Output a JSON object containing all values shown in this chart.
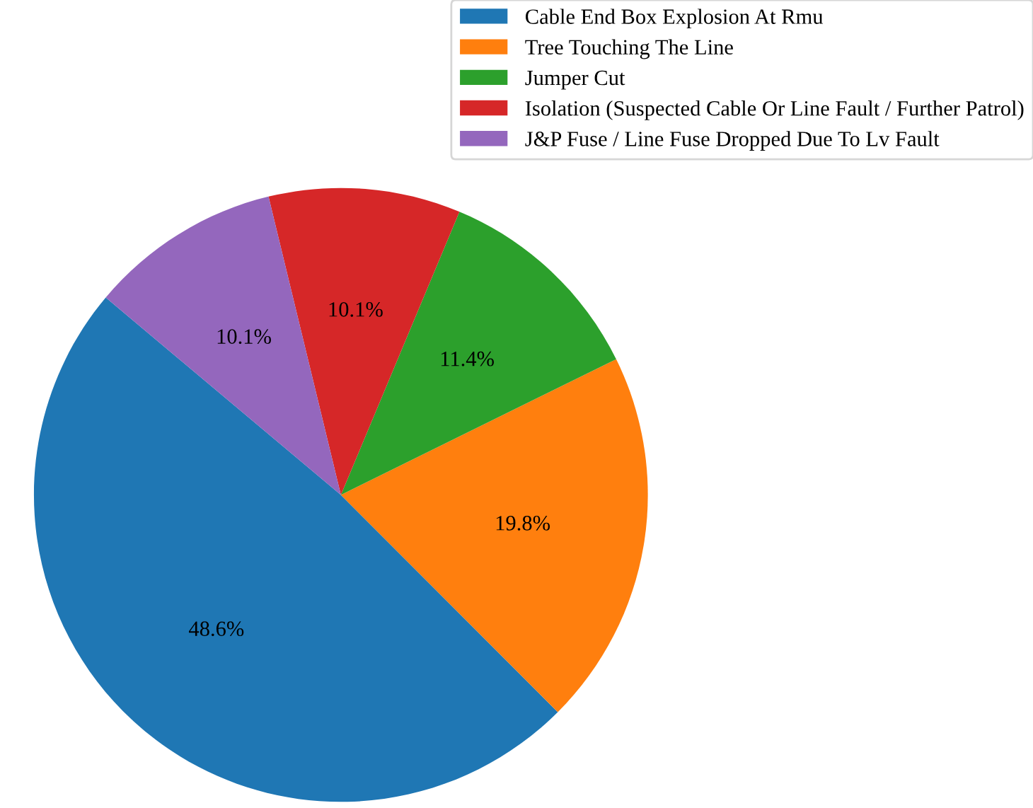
{
  "chart_data": {
    "type": "pie",
    "categories": [
      "Cable End Box Explosion At Rmu",
      "Tree Touching The Line",
      "Jumper Cut",
      "Isolation (Suspected Cable Or Line Fault / Further Patrol)",
      "J&P Fuse / Line Fuse Dropped Due To Lv Fault"
    ],
    "values": [
      48.6,
      19.8,
      11.4,
      10.1,
      10.1
    ],
    "value_labels": [
      "48.6%",
      "19.8%",
      "11.4%",
      "10.1%",
      "10.1%"
    ],
    "colors": [
      "#1f77b4",
      "#ff7f0e",
      "#2ca02c",
      "#d62728",
      "#9467bd"
    ],
    "legend": "top right"
  }
}
